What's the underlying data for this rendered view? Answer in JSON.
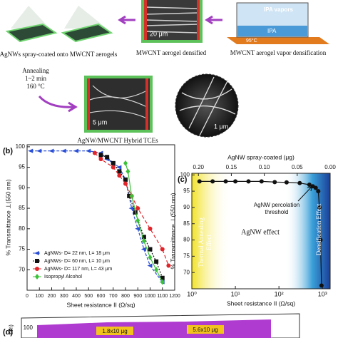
{
  "figure": {
    "spray_label": "AgNWs spray-coated onto MWCNT aerogels",
    "densified_label": "MWCNT aerogel densified",
    "vapor_label": "MWCNT aerogel vapor densification",
    "ipa_vapors": "IPA vapors",
    "ipa": "IPA",
    "temperature": "95°C",
    "scale_20": "20 μm",
    "annealing": [
      "Annealing",
      "1~2 min",
      "160 °C"
    ],
    "scale_5": "5 μm",
    "scale_1": "1 μm",
    "hybrid_label": "AgNW/MWCNT Hybrid TCEs"
  },
  "chart_data": [
    {
      "type": "line",
      "panel": "(b)",
      "xlabel": "Sheet resistance II (Ω/sq)",
      "ylabel": "% Transmittance ⊥(550 nm)",
      "xlim": [
        0,
        1200
      ],
      "xticks": [
        0,
        100,
        200,
        300,
        400,
        500,
        600,
        700,
        800,
        900,
        1000,
        1100,
        1200
      ],
      "ylim": [
        65,
        100.5
      ],
      "yticks": [
        70,
        75,
        80,
        85,
        90,
        95,
        100
      ],
      "legend": "lower left",
      "series": [
        {
          "name": "AgNWs- D= 22 nm, L= 18 μm",
          "color": "#2a4fd6",
          "marker": "triangle-left",
          "dash": "4 2",
          "x": [
            30,
            100,
            200,
            300,
            400,
            500,
            600,
            650,
            700,
            750,
            800,
            850,
            900,
            950,
            1000,
            1100
          ],
          "values": [
            99,
            99,
            99,
            99,
            99,
            99,
            98.5,
            97,
            96,
            95,
            92,
            85,
            80,
            75,
            71,
            67
          ]
        },
        {
          "name": "AgNWs- D= 60 nm, L= 10 μm",
          "color": "#111111",
          "marker": "square",
          "dash": "2 2",
          "x": [
            600,
            650,
            700,
            750,
            800,
            830,
            880,
            950,
            1000,
            1050,
            1100
          ],
          "values": [
            98,
            97.5,
            96,
            94,
            92,
            88,
            84,
            78,
            75,
            72,
            68
          ]
        },
        {
          "name": "AgNWs- D= 117 nm, L= 43 μm",
          "color": "#e0242a",
          "marker": "circle",
          "dash": "5 3",
          "x": [
            550,
            600,
            700,
            750,
            800,
            850,
            900,
            1000,
            1100,
            1150
          ],
          "values": [
            98.5,
            97,
            95,
            93,
            91,
            88,
            85,
            80,
            75,
            71
          ]
        },
        {
          "name": "Isopropyl Alcohol",
          "color": "#3cc23a",
          "marker": "diamond",
          "dash": "none",
          "x": [
            800,
            820,
            850,
            900,
            950,
            1000,
            1050,
            1100
          ],
          "values": [
            96,
            94,
            88,
            82,
            77,
            73,
            70,
            67
          ]
        }
      ]
    },
    {
      "type": "line",
      "panel": "(c)",
      "xlabel": "Sheet resistance II (Ω/sq)",
      "ylabel": "% Transmittance ⊥(550 nm)",
      "x2label": "AgNW spray-coated (μg)",
      "xscale": "log",
      "xlim": [
        1,
        1500
      ],
      "xticks": [
        {
          "value": 1,
          "label": "10⁰"
        },
        {
          "value": 10,
          "label": "10¹"
        },
        {
          "value": 100,
          "label": "10²"
        },
        {
          "value": 1000,
          "label": "10³"
        }
      ],
      "x2lim": [
        0.21,
        0
      ],
      "x2ticks": [
        {
          "value": 0.2,
          "label": "0.20"
        },
        0.15,
        {
          "value": 0.1,
          "label": "0.10"
        },
        0.05,
        {
          "value": 0,
          "label": "0.00"
        }
      ],
      "ylim": [
        65,
        100.5
      ],
      "yticks": [
        70,
        75,
        80,
        85,
        90,
        95,
        100
      ],
      "annotations": {
        "threshold": [
          "AgNW percolation",
          "threshold"
        ],
        "effect": "AgNW effect",
        "thermal": [
          "Thermal Annealing",
          "Effect"
        ],
        "densification": "Densification Effect"
      },
      "series": [
        {
          "color": "#111111",
          "marker": "circle",
          "dash": "none",
          "x": [
            1.5,
            3,
            6,
            10,
            20,
            40,
            80,
            150,
            300,
            500,
            600,
            700,
            800,
            850,
            900,
            950
          ],
          "values": [
            98,
            98,
            98,
            98,
            98,
            98,
            97.8,
            97.7,
            97.5,
            97,
            96.5,
            96,
            95,
            90,
            80,
            66
          ]
        }
      ]
    }
  ],
  "panel_d": {
    "panel": "(d)",
    "ylabel": "nm)",
    "ytick": "100",
    "annotations": [
      "1.8x10 μg",
      "5.6x10 μg"
    ]
  }
}
